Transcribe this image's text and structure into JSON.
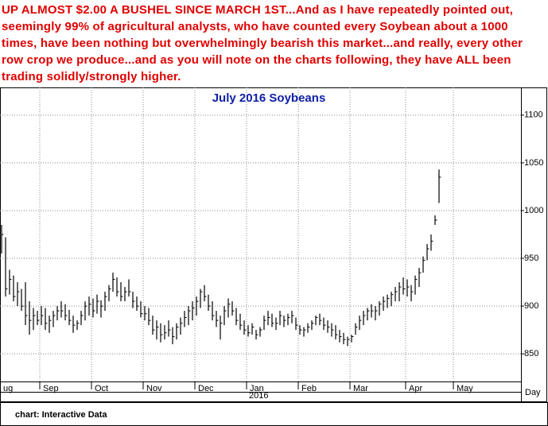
{
  "chart_data": {
    "type": "ohlc",
    "annotation": "UP ALMOST $2.00 A BUSHEL SINCE MARCH 1ST...And as I have repeatedly pointed out, seemingly 99% of agricultural analysts, who have counted every Soybean about a 1000 times, have been nothing but overwhelmingly bearish this market...and really, every other row crop we produce...and as you will note on the charts following, they have ALL been trading solidly/strongly higher.",
    "title": "July 2016 Soybeans",
    "source": "chart: Interactive Data",
    "xlabel": "Day",
    "year_label": "2016",
    "color": "#000000",
    "grid": true,
    "xlim": [
      0,
      131
    ],
    "xticks": [
      {
        "value": 0,
        "label": "ug"
      },
      {
        "value": 10,
        "label": "Sep"
      },
      {
        "value": 23,
        "label": "Oct"
      },
      {
        "value": 36,
        "label": "Nov"
      },
      {
        "value": 49,
        "label": "Dec"
      },
      {
        "value": 62,
        "label": "Jan"
      },
      {
        "value": 75,
        "label": "Feb"
      },
      {
        "value": 88,
        "label": "Mar"
      },
      {
        "value": 102,
        "label": "Apr"
      },
      {
        "value": 114,
        "label": "May"
      }
    ],
    "ylim": [
      821,
      1129
    ],
    "yticks": [
      850,
      900,
      950,
      1000,
      1050,
      1100
    ],
    "high": [
      985,
      972,
      938,
      932,
      925,
      918,
      925,
      905,
      898,
      895,
      900,
      898,
      890,
      895,
      900,
      905,
      902,
      896,
      890,
      885,
      895,
      905,
      910,
      908,
      912,
      906,
      915,
      922,
      935,
      930,
      925,
      920,
      928,
      915,
      910,
      905,
      900,
      898,
      890,
      885,
      882,
      880,
      885,
      878,
      882,
      888,
      895,
      900,
      905,
      910,
      918,
      922,
      912,
      905,
      895,
      890,
      900,
      908,
      905,
      898,
      892,
      885,
      880,
      882,
      875,
      878,
      890,
      895,
      892,
      888,
      895,
      890,
      892,
      895,
      888,
      880,
      878,
      882,
      885,
      890,
      892,
      888,
      885,
      882,
      880,
      875,
      872,
      868,
      870,
      882,
      890,
      895,
      898,
      902,
      900,
      905,
      910,
      912,
      915,
      920,
      925,
      930,
      928,
      922,
      932,
      940,
      952,
      965,
      975,
      995,
      1043
    ],
    "low": [
      955,
      910,
      912,
      905,
      900,
      895,
      880,
      870,
      875,
      880,
      880,
      875,
      872,
      878,
      885,
      888,
      885,
      880,
      872,
      875,
      880,
      885,
      890,
      888,
      892,
      888,
      895,
      905,
      915,
      910,
      905,
      905,
      910,
      898,
      895,
      888,
      885,
      880,
      870,
      865,
      862,
      865,
      868,
      860,
      865,
      870,
      878,
      880,
      885,
      890,
      898,
      905,
      895,
      885,
      878,
      865,
      880,
      888,
      890,
      880,
      875,
      870,
      868,
      870,
      865,
      868,
      875,
      880,
      878,
      875,
      880,
      878,
      880,
      882,
      875,
      870,
      868,
      872,
      875,
      880,
      880,
      875,
      872,
      868,
      865,
      862,
      860,
      858,
      862,
      870,
      875,
      880,
      885,
      888,
      885,
      890,
      895,
      898,
      900,
      905,
      905,
      912,
      910,
      905,
      912,
      920,
      935,
      948,
      958,
      985,
      1008
    ],
    "close": [
      975,
      918,
      928,
      910,
      915,
      900,
      890,
      885,
      890,
      885,
      890,
      882,
      885,
      890,
      895,
      895,
      890,
      885,
      880,
      882,
      890,
      900,
      902,
      895,
      905,
      900,
      910,
      918,
      928,
      915,
      910,
      915,
      915,
      905,
      900,
      892,
      892,
      885,
      875,
      878,
      870,
      872,
      875,
      868,
      878,
      882,
      888,
      895,
      898,
      905,
      915,
      910,
      900,
      890,
      885,
      882,
      895,
      902,
      895,
      885,
      880,
      875,
      872,
      878,
      870,
      875,
      885,
      888,
      882,
      882,
      890,
      885,
      888,
      890,
      880,
      875,
      875,
      878,
      882,
      888,
      885,
      880,
      878,
      875,
      870,
      868,
      865,
      865,
      868,
      878,
      885,
      890,
      895,
      895,
      895,
      902,
      905,
      908,
      912,
      915,
      920,
      918,
      920,
      915,
      928,
      935,
      948,
      960,
      968,
      990,
      1035
    ]
  }
}
